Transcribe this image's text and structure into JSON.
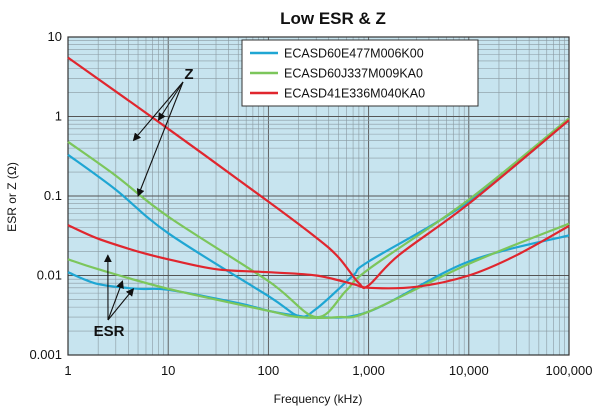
{
  "chart_data": {
    "type": "line",
    "title": "Low ESR & Z",
    "xlabel": "Frequency (kHz)",
    "ylabel": "ESR or Z (Ω)",
    "x_scale": "log",
    "y_scale": "log",
    "xlim": [
      1,
      100000
    ],
    "ylim": [
      0.001,
      10
    ],
    "x_ticks": [
      "1",
      "10",
      "100",
      "1,000",
      "10,000",
      "100,000"
    ],
    "y_ticks": [
      "0.001",
      "0.01",
      "0.1",
      "1",
      "10"
    ],
    "grid": true,
    "background": "#c7e4ef",
    "legend_position": "top-right",
    "annotations": [
      {
        "label": "Z",
        "points_to": "impedance curves"
      },
      {
        "label": "ESR",
        "points_to": "ESR curves"
      }
    ],
    "series": [
      {
        "name": "ECASD60E477M006K00",
        "color": "#1fa6d3",
        "z": [
          [
            1,
            0.33
          ],
          [
            3,
            0.12
          ],
          [
            10,
            0.034
          ],
          [
            100,
            0.0055
          ],
          [
            200,
            0.0031
          ],
          [
            300,
            0.0038
          ],
          [
            700,
            0.01
          ],
          [
            1000,
            0.015
          ],
          [
            10000,
            0.085
          ],
          [
            100000,
            0.9
          ]
        ],
        "esr": [
          [
            1,
            0.011
          ],
          [
            2,
            0.0078
          ],
          [
            5,
            0.0068
          ],
          [
            10,
            0.0066
          ],
          [
            50,
            0.0045
          ],
          [
            100,
            0.0036
          ],
          [
            200,
            0.0031
          ],
          [
            300,
            0.003
          ],
          [
            1000,
            0.0035
          ],
          [
            10000,
            0.015
          ],
          [
            100000,
            0.032
          ]
        ]
      },
      {
        "name": "ECASD60J337M009KA0",
        "color": "#7cc65b",
        "z": [
          [
            1,
            0.48
          ],
          [
            3,
            0.18
          ],
          [
            10,
            0.055
          ],
          [
            100,
            0.0085
          ],
          [
            300,
            0.003
          ],
          [
            600,
            0.0065
          ],
          [
            1000,
            0.012
          ],
          [
            10000,
            0.09
          ],
          [
            100000,
            0.95
          ]
        ],
        "esr": [
          [
            1,
            0.016
          ],
          [
            2,
            0.012
          ],
          [
            10,
            0.0068
          ],
          [
            100,
            0.0036
          ],
          [
            200,
            0.003
          ],
          [
            500,
            0.003
          ],
          [
            1000,
            0.0035
          ],
          [
            10000,
            0.014
          ],
          [
            100000,
            0.045
          ]
        ]
      },
      {
        "name": "ECASD41E336M040KA0",
        "color": "#e0262e",
        "z": [
          [
            1,
            5.5
          ],
          [
            10,
            0.7
          ],
          [
            100,
            0.085
          ],
          [
            300,
            0.03
          ],
          [
            500,
            0.017
          ],
          [
            800,
            0.008
          ],
          [
            1000,
            0.0075
          ],
          [
            2000,
            0.018
          ],
          [
            10000,
            0.08
          ],
          [
            100000,
            0.9
          ]
        ],
        "esr": [
          [
            1,
            0.043
          ],
          [
            2,
            0.029
          ],
          [
            5,
            0.02
          ],
          [
            10,
            0.016
          ],
          [
            30,
            0.012
          ],
          [
            100,
            0.011
          ],
          [
            300,
            0.01
          ],
          [
            700,
            0.0078
          ],
          [
            1000,
            0.007
          ],
          [
            3000,
            0.0072
          ],
          [
            10000,
            0.01
          ],
          [
            30000,
            0.018
          ],
          [
            100000,
            0.042
          ]
        ]
      }
    ]
  }
}
